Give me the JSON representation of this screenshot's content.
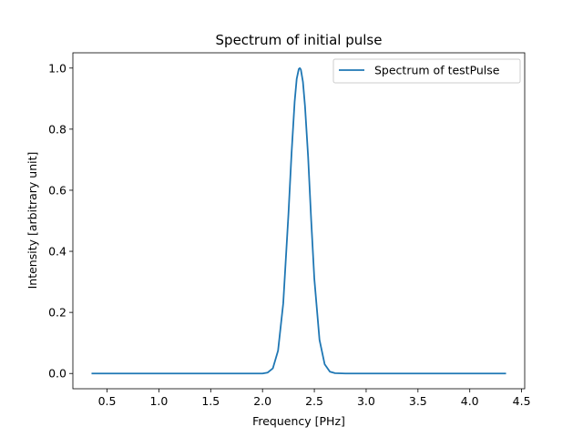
{
  "chart_data": {
    "type": "line",
    "title": "Spectrum of initial pulse",
    "xlabel": "Frequency [PHz]",
    "ylabel": "Intensity [arbitrary unit]",
    "xlim": [
      0.17,
      4.53
    ],
    "ylim": [
      -0.05,
      1.05
    ],
    "xticks": [
      0.5,
      1.0,
      1.5,
      2.0,
      2.5,
      3.0,
      3.5,
      4.0,
      4.5
    ],
    "xtick_labels": [
      "0.5",
      "1.0",
      "1.5",
      "2.0",
      "2.5",
      "3.0",
      "3.5",
      "4.0",
      "4.5"
    ],
    "yticks": [
      0.0,
      0.2,
      0.4,
      0.6,
      0.8,
      1.0
    ],
    "ytick_labels": [
      "0.0",
      "0.2",
      "0.4",
      "0.6",
      "0.8",
      "1.0"
    ],
    "grid": false,
    "legend_position": "top-right",
    "series": [
      {
        "name": "Spectrum of testPulse",
        "color": "#1f77b4",
        "x": [
          0.35,
          1.0,
          1.5,
          1.9,
          2.0,
          2.05,
          2.1,
          2.15,
          2.2,
          2.25,
          2.28,
          2.31,
          2.33,
          2.35,
          2.36,
          2.37,
          2.39,
          2.41,
          2.44,
          2.47,
          2.5,
          2.55,
          2.6,
          2.65,
          2.7,
          2.8,
          3.0,
          3.5,
          4.0,
          4.35
        ],
        "y": [
          0.0,
          0.0,
          0.0,
          0.0,
          0.0,
          0.003,
          0.017,
          0.075,
          0.23,
          0.52,
          0.72,
          0.89,
          0.965,
          0.997,
          1.0,
          0.995,
          0.955,
          0.875,
          0.71,
          0.5,
          0.31,
          0.11,
          0.03,
          0.006,
          0.001,
          0.0,
          0.0,
          0.0,
          0.0,
          0.0
        ]
      }
    ]
  }
}
